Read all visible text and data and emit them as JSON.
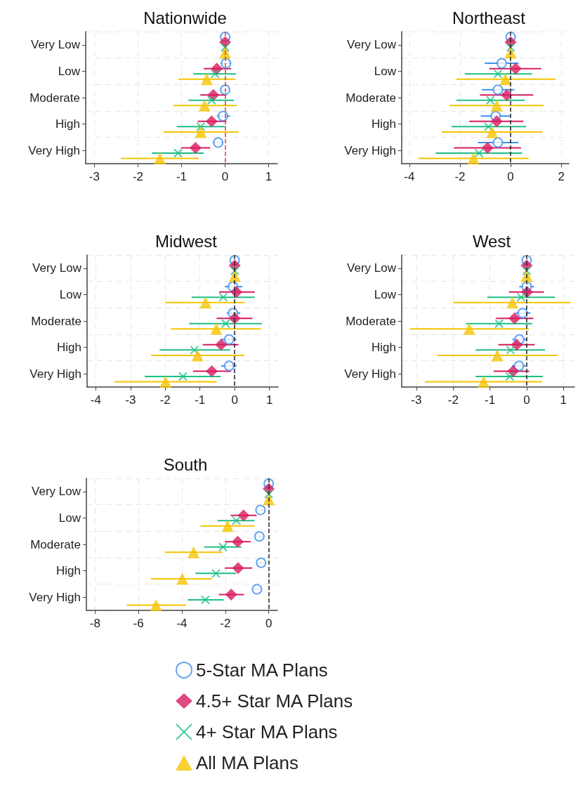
{
  "chart_data": [
    {
      "type": "scatter",
      "title": "Nationwide",
      "orientation": "horizontal",
      "categories": [
        "Very Low",
        "Low",
        "Moderate",
        "High",
        "Very High"
      ],
      "xlim": [
        -3.2,
        1.2
      ],
      "xticks": [
        -3,
        -2,
        -1,
        0,
        1
      ],
      "grid": true,
      "legend": false,
      "ref_lines": [
        {
          "axis": "x",
          "value": 0,
          "color": "#e53935",
          "line_style": "dashed"
        }
      ],
      "series": [
        {
          "color": "#3c8ff0",
          "marker": "circle",
          "values": [
            0,
            0.02,
            0,
            -0.05,
            -0.16
          ],
          "errors": [
            null,
            [
              -0.1,
              0.14
            ],
            [
              -0.1,
              0.1
            ],
            [
              -0.19,
              0.11
            ],
            [
              -0.28,
              -0.04
            ]
          ]
        },
        {
          "color": "#d81b60",
          "marker": "diamond",
          "values": [
            0,
            -0.19,
            -0.27,
            -0.31,
            -0.68
          ],
          "errors": [
            null,
            [
              -0.49,
              0.14
            ],
            [
              -0.57,
              0.03
            ],
            [
              -0.63,
              0.03
            ],
            [
              -1.01,
              -0.34
            ]
          ]
        },
        {
          "color": "#1fbf86",
          "marker": "cross",
          "values": [
            0,
            -0.23,
            -0.31,
            -0.56,
            -1.08
          ],
          "errors": [
            null,
            [
              -0.73,
              0.25
            ],
            [
              -0.84,
              0.2
            ],
            [
              -1.11,
              0
            ],
            [
              -1.68,
              -0.49
            ]
          ]
        },
        {
          "color": "#f5c400",
          "marker": "triangle",
          "values": [
            0,
            -0.42,
            -0.47,
            -0.56,
            -1.5
          ],
          "errors": [
            null,
            [
              -1.07,
              0.24
            ],
            [
              -1.19,
              0.27
            ],
            [
              -1.41,
              0.31
            ],
            [
              -2.39,
              -0.61
            ]
          ]
        }
      ]
    },
    {
      "type": "scatter",
      "title": "Northeast",
      "orientation": "horizontal",
      "categories": [
        "Very Low",
        "Low",
        "Moderate",
        "High",
        "Very High"
      ],
      "xlim": [
        -4.3,
        2.3
      ],
      "xticks": [
        -4,
        -2,
        0,
        2
      ],
      "grid": true,
      "legend": false,
      "ref_lines": [
        {
          "axis": "x",
          "value": 0,
          "color": "#222222",
          "line_style": "dashed"
        }
      ],
      "series": [
        {
          "color": "#3c8ff0",
          "marker": "circle",
          "values": [
            0,
            -0.35,
            -0.5,
            -0.59,
            -0.5
          ],
          "errors": [
            null,
            [
              -1.02,
              0.32
            ],
            [
              -1.14,
              0.15
            ],
            [
              -1.18,
              -0.02
            ],
            [
              -1.29,
              0.31
            ]
          ]
        },
        {
          "color": "#d81b60",
          "marker": "diamond",
          "values": [
            0,
            0.2,
            -0.15,
            -0.55,
            -0.91
          ],
          "errors": [
            null,
            [
              -0.84,
              1.21
            ],
            [
              -1.21,
              0.9
            ],
            [
              -1.63,
              0.51
            ],
            [
              -2.24,
              0.41
            ]
          ]
        },
        {
          "color": "#1fbf86",
          "marker": "cross",
          "values": [
            0,
            -0.5,
            -0.8,
            -0.88,
            -1.25
          ],
          "errors": [
            null,
            [
              -1.81,
              0.85
            ],
            [
              -2.14,
              0.56
            ],
            [
              -2.33,
              0.61
            ],
            [
              -2.96,
              0.46
            ]
          ]
        },
        {
          "color": "#f5c400",
          "marker": "triangle",
          "values": [
            0,
            -0.21,
            -0.55,
            -0.73,
            -1.47
          ],
          "errors": [
            null,
            [
              -2.14,
              1.77
            ],
            [
              -2.41,
              1.3
            ],
            [
              -2.71,
              1.26
            ],
            [
              -3.63,
              0.71
            ]
          ]
        }
      ]
    },
    {
      "type": "scatter",
      "title": "Midwest",
      "orientation": "horizontal",
      "categories": [
        "Very Low",
        "Low",
        "Moderate",
        "High",
        "Very High"
      ],
      "xlim": [
        -4.25,
        1.25
      ],
      "xticks": [
        -4,
        -3,
        -2,
        -1,
        0,
        1
      ],
      "grid": true,
      "legend": false,
      "ref_lines": [
        {
          "axis": "x",
          "value": 0,
          "color": "#222222",
          "line_style": "dashed"
        }
      ],
      "series": [
        {
          "color": "#3c8ff0",
          "marker": "circle",
          "values": [
            0,
            -0.05,
            -0.05,
            -0.16,
            -0.16
          ],
          "errors": [
            null,
            [
              -0.28,
              0.22
            ],
            [
              -0.23,
              0.16
            ],
            [
              -0.39,
              0.05
            ],
            [
              -0.39,
              0.05
            ]
          ]
        },
        {
          "color": "#d81b60",
          "marker": "diamond",
          "values": [
            0,
            0.05,
            0,
            -0.39,
            -0.66
          ],
          "errors": [
            null,
            [
              -0.45,
              0.58
            ],
            [
              -0.52,
              0.51
            ],
            [
              -0.92,
              0.11
            ],
            [
              -1.2,
              -0.11
            ]
          ]
        },
        {
          "color": "#1fbf86",
          "marker": "cross",
          "values": [
            0,
            -0.33,
            -0.26,
            -1.16,
            -1.49
          ],
          "errors": [
            null,
            [
              -1.24,
              0.58
            ],
            [
              -1.31,
              0.78
            ],
            [
              -2.16,
              -0.13
            ],
            [
              -2.59,
              -0.4
            ]
          ]
        },
        {
          "color": "#f5c400",
          "marker": "triangle",
          "values": [
            0,
            -0.84,
            -0.53,
            -1.07,
            -1.99
          ],
          "errors": [
            null,
            [
              -2,
              0.29
            ],
            [
              -1.84,
              0.76
            ],
            [
              -2.41,
              0.28
            ],
            [
              -3.46,
              -0.52
            ]
          ]
        }
      ]
    },
    {
      "type": "scatter",
      "title": "West",
      "orientation": "horizontal",
      "categories": [
        "Very Low",
        "Low",
        "Moderate",
        "High",
        "Very High"
      ],
      "xlim": [
        -3.4,
        1.3
      ],
      "xticks": [
        -3,
        -2,
        -1,
        0,
        1
      ],
      "grid": true,
      "legend": false,
      "ref_lines": [
        {
          "axis": "x",
          "value": 0,
          "color": "#222222",
          "line_style": "dashed"
        }
      ],
      "series": [
        {
          "color": "#3c8ff0",
          "marker": "circle",
          "values": [
            0,
            0,
            -0.11,
            -0.2,
            -0.21
          ],
          "errors": [
            null,
            [
              -0.2,
              0.2
            ],
            [
              -0.3,
              0.1
            ],
            [
              -0.39,
              0
            ],
            [
              -0.4,
              -0.02
            ]
          ]
        },
        {
          "color": "#d81b60",
          "marker": "diamond",
          "values": [
            0,
            0.01,
            -0.33,
            -0.27,
            -0.37
          ],
          "errors": [
            null,
            [
              -0.48,
              0.47
            ],
            [
              -0.83,
              0.18
            ],
            [
              -0.77,
              0.22
            ],
            [
              -0.9,
              0.07
            ]
          ]
        },
        {
          "color": "#1fbf86",
          "marker": "cross",
          "values": [
            0,
            -0.15,
            -0.75,
            -0.44,
            -0.46
          ],
          "errors": [
            null,
            [
              -1.07,
              0.77
            ],
            [
              -1.65,
              0.15
            ],
            [
              -1.39,
              0.5
            ],
            [
              -1.39,
              0.44
            ]
          ]
        },
        {
          "color": "#f5c400",
          "marker": "triangle",
          "values": [
            0,
            -0.39,
            -1.56,
            -0.8,
            -1.17
          ],
          "errors": [
            null,
            [
              -2,
              1.2
            ],
            [
              -3.18,
              0.06
            ],
            [
              -2.44,
              0.85
            ],
            [
              -2.77,
              0.41
            ]
          ]
        }
      ]
    },
    {
      "type": "scatter",
      "title": "South",
      "orientation": "horizontal",
      "categories": [
        "Very Low",
        "Low",
        "Moderate",
        "High",
        "Very High"
      ],
      "xlim": [
        -8.4,
        0.4
      ],
      "xticks": [
        -8,
        -6,
        -4,
        -2,
        0
      ],
      "grid": true,
      "legend": "bottom",
      "ref_lines": [
        {
          "axis": "x",
          "value": 0,
          "color": "#222222",
          "line_style": "dashed"
        }
      ],
      "series": [
        {
          "name": "5-Star MA Plans",
          "color": "#3c8ff0",
          "marker": "circle",
          "values": [
            0,
            -0.38,
            -0.43,
            -0.35,
            -0.54
          ],
          "errors": [
            null,
            [
              -0.53,
              -0.23
            ],
            [
              -0.59,
              -0.27
            ],
            [
              -0.5,
              -0.2
            ],
            [
              -0.69,
              -0.39
            ]
          ]
        },
        {
          "name": "4.5+ Star MA Plans",
          "color": "#d81b60",
          "marker": "diamond",
          "values": [
            0,
            -1.16,
            -1.43,
            -1.41,
            -1.73
          ],
          "errors": [
            null,
            [
              -1.75,
              -0.56
            ],
            [
              -2.02,
              -0.83
            ],
            [
              -2.02,
              -0.76
            ],
            [
              -2.3,
              -1.14
            ]
          ]
        },
        {
          "name": "4+ Star MA Plans",
          "color": "#1fbf86",
          "marker": "cross",
          "values": [
            0,
            -1.49,
            -2.11,
            -2.43,
            -2.92
          ],
          "errors": [
            null,
            [
              -2.36,
              -0.65
            ],
            [
              -2.97,
              -1.26
            ],
            [
              -3.38,
              -1.51
            ],
            [
              -3.73,
              -2.08
            ]
          ]
        },
        {
          "name": "All MA Plans",
          "color": "#f5c400",
          "marker": "triangle",
          "values": [
            0,
            -1.89,
            -3.46,
            -3.98,
            -5.19
          ],
          "errors": [
            null,
            [
              -3.14,
              -0.65
            ],
            [
              -4.79,
              -2.14
            ],
            [
              -5.43,
              -2.62
            ],
            [
              -6.54,
              -3.81
            ]
          ]
        }
      ]
    }
  ]
}
